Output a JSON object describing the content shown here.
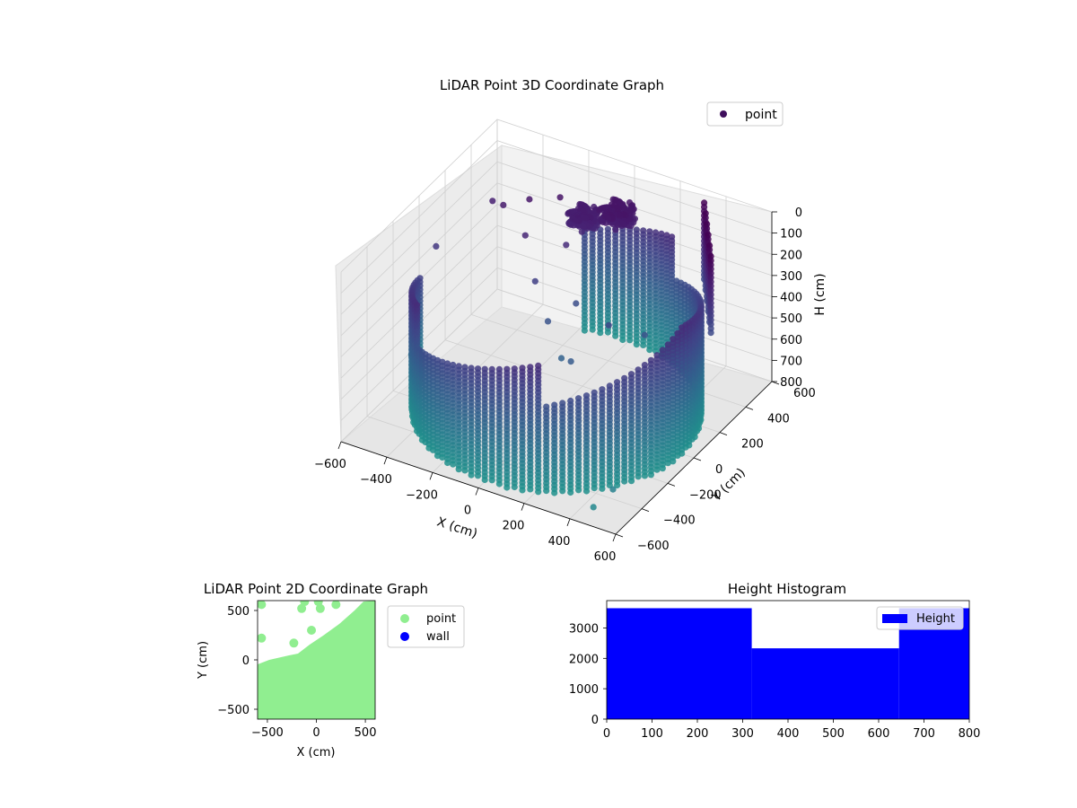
{
  "chart_data": [
    {
      "type": "scatter",
      "title": "LiDAR Point 3D Coordinate Graph",
      "xlabel": "X (cm)",
      "ylabel": "Y (cm)",
      "zlabel": "H (cm)",
      "xlim": [
        -600,
        600
      ],
      "ylim": [
        -600,
        600
      ],
      "zlim": [
        800,
        0
      ],
      "x_ticks": [
        -600,
        -400,
        -200,
        0,
        200,
        400,
        600
      ],
      "y_ticks": [
        -600,
        -400,
        -200,
        0,
        200,
        400,
        600
      ],
      "z_ticks": [
        0,
        100,
        200,
        300,
        400,
        500,
        600,
        700,
        800
      ],
      "grid": true,
      "legend": {
        "position": "upper-right",
        "entries": [
          "point"
        ]
      },
      "series": [
        {
          "name": "point",
          "colormap": "viridis",
          "description_shape": "cylindrical wall of points",
          "wall_radius": 550,
          "wall_height_range": [
            200,
            800
          ],
          "scattered_points": [
            [
              -450,
              300,
              150
            ],
            [
              -380,
              260,
              120
            ],
            [
              -300,
              320,
              100
            ],
            [
              -250,
              200,
              180
            ],
            [
              -200,
              380,
              90
            ],
            [
              -150,
              100,
              300
            ],
            [
              -100,
              250,
              200
            ],
            [
              -60,
              40,
              420
            ],
            [
              0,
              150,
              380
            ],
            [
              50,
              -50,
              500
            ],
            [
              120,
              -100,
              460
            ],
            [
              200,
              50,
              350
            ],
            [
              -520,
              -200,
              600
            ],
            [
              -560,
              60,
              260
            ],
            [
              300,
              150,
              420
            ],
            [
              520,
              -480,
              690
            ],
            [
              480,
              -560,
              740
            ]
          ],
          "clusters": [
            {
              "center": [
                -100,
                380,
                120
              ],
              "spread": 60
            },
            {
              "center": [
                20,
                430,
                90
              ],
              "spread": 70
            }
          ]
        }
      ]
    },
    {
      "type": "scatter",
      "title": "LiDAR Point 2D Coordinate Graph",
      "xlabel": "X (cm)",
      "ylabel": "Y (cm)",
      "xlim": [
        -600,
        600
      ],
      "ylim": [
        -600,
        600
      ],
      "x_ticks": [
        -500,
        0,
        500
      ],
      "y_ticks": [
        -500,
        0,
        500
      ],
      "legend": {
        "position": "outside-right",
        "entries": [
          "point",
          "wall"
        ]
      },
      "series": [
        {
          "name": "point",
          "color": "#90ee90"
        },
        {
          "name": "wall",
          "color": "#0000ff"
        }
      ]
    },
    {
      "type": "bar",
      "title": "Height Histogram",
      "xlabel": "",
      "ylabel": "",
      "xlim": [
        0,
        800
      ],
      "ylim": [
        0,
        3900
      ],
      "x_ticks": [
        0,
        100,
        200,
        300,
        400,
        500,
        600,
        700,
        800
      ],
      "y_ticks": [
        0,
        1000,
        2000,
        3000
      ],
      "bins": [
        [
          0,
          320
        ],
        [
          320,
          645
        ],
        [
          645,
          800
        ]
      ],
      "values": [
        3650,
        2330,
        3650
      ],
      "legend": {
        "position": "upper-right",
        "entries": [
          "Height"
        ]
      },
      "series": [
        {
          "name": "Height",
          "color": "#0000ff"
        }
      ]
    }
  ]
}
